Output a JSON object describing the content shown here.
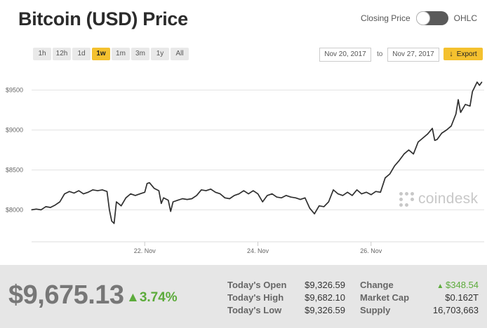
{
  "header": {
    "title": "Bitcoin (USD) Price"
  },
  "toggle": {
    "left_label": "Closing Price",
    "right_label": "OHLC"
  },
  "ranges": [
    {
      "label": "1h",
      "active": false
    },
    {
      "label": "12h",
      "active": false
    },
    {
      "label": "1d",
      "active": false
    },
    {
      "label": "1w",
      "active": true
    },
    {
      "label": "1m",
      "active": false
    },
    {
      "label": "3m",
      "active": false
    },
    {
      "label": "1y",
      "active": false
    },
    {
      "label": "All",
      "active": false
    }
  ],
  "date_range": {
    "from": "Nov 20, 2017",
    "to_label": "to",
    "to": "Nov 27, 2017",
    "export_label": "Export"
  },
  "watermark": "coindesk",
  "summary": {
    "price": "$9,675.13",
    "change_pct": "3.74%",
    "stats": [
      {
        "label": "Today's Open",
        "value": "$9,326.59"
      },
      {
        "label": "Today's High",
        "value": "$9,682.10"
      },
      {
        "label": "Today's Low",
        "value": "$9,326.59"
      }
    ],
    "stats2": [
      {
        "label": "Change",
        "value": "$348.54",
        "up": true
      },
      {
        "label": "Market Cap",
        "value": "$0.162T",
        "up": false
      },
      {
        "label": "Supply",
        "value": "16,703,663",
        "up": false
      }
    ]
  },
  "colors": {
    "accent": "#f4c12f",
    "line": "#2f2f2f",
    "positive": "#5cab3b",
    "footer_bg": "#e6e6e6"
  },
  "chart_data": {
    "type": "line",
    "title": "Bitcoin (USD) Price",
    "ylabel": "",
    "xlabel": "",
    "ylim": [
      7600,
      9750
    ],
    "yticks": [
      {
        "value": 8000,
        "label": "$8000"
      },
      {
        "value": 8500,
        "label": "$8500"
      },
      {
        "value": 9000,
        "label": "$9000"
      },
      {
        "value": 9500,
        "label": "$9500"
      }
    ],
    "xlim": [
      "2017-11-20",
      "2017-11-27"
    ],
    "xticks": [
      {
        "date": "2017-11-22",
        "label": "22. Nov"
      },
      {
        "date": "2017-11-24",
        "label": "24. Nov"
      },
      {
        "date": "2017-11-26",
        "label": "26. Nov"
      }
    ],
    "grid": true,
    "series": [
      {
        "name": "",
        "points": [
          [
            "2017-11-20 00:00",
            8000
          ],
          [
            "2017-11-20 02:00",
            8010
          ],
          [
            "2017-11-20 04:00",
            8000
          ],
          [
            "2017-11-20 06:00",
            8040
          ],
          [
            "2017-11-20 08:00",
            8030
          ],
          [
            "2017-11-20 10:00",
            8060
          ],
          [
            "2017-11-20 12:00",
            8100
          ],
          [
            "2017-11-20 14:00",
            8200
          ],
          [
            "2017-11-20 16:00",
            8230
          ],
          [
            "2017-11-20 18:00",
            8210
          ],
          [
            "2017-11-20 20:00",
            8240
          ],
          [
            "2017-11-20 22:00",
            8200
          ],
          [
            "2017-11-21 00:00",
            8220
          ],
          [
            "2017-11-21 02:00",
            8250
          ],
          [
            "2017-11-21 04:00",
            8240
          ],
          [
            "2017-11-21 06:00",
            8250
          ],
          [
            "2017-11-21 08:00",
            8230
          ],
          [
            "2017-11-21 09:00",
            8000
          ],
          [
            "2017-11-21 10:00",
            7860
          ],
          [
            "2017-11-21 11:00",
            7830
          ],
          [
            "2017-11-21 12:00",
            8100
          ],
          [
            "2017-11-21 14:00",
            8050
          ],
          [
            "2017-11-21 16:00",
            8150
          ],
          [
            "2017-11-21 18:00",
            8200
          ],
          [
            "2017-11-21 20:00",
            8180
          ],
          [
            "2017-11-21 22:00",
            8200
          ],
          [
            "2017-11-22 00:00",
            8220
          ],
          [
            "2017-11-22 01:00",
            8330
          ],
          [
            "2017-11-22 02:00",
            8340
          ],
          [
            "2017-11-22 04:00",
            8270
          ],
          [
            "2017-11-22 06:00",
            8240
          ],
          [
            "2017-11-22 07:00",
            8080
          ],
          [
            "2017-11-22 08:00",
            8150
          ],
          [
            "2017-11-22 10:00",
            8120
          ],
          [
            "2017-11-22 11:00",
            7980
          ],
          [
            "2017-11-22 12:00",
            8100
          ],
          [
            "2017-11-22 14:00",
            8120
          ],
          [
            "2017-11-22 16:00",
            8140
          ],
          [
            "2017-11-22 18:00",
            8130
          ],
          [
            "2017-11-22 20:00",
            8140
          ],
          [
            "2017-11-22 22:00",
            8180
          ],
          [
            "2017-11-23 00:00",
            8250
          ],
          [
            "2017-11-23 02:00",
            8240
          ],
          [
            "2017-11-23 04:00",
            8260
          ],
          [
            "2017-11-23 06:00",
            8220
          ],
          [
            "2017-11-23 08:00",
            8200
          ],
          [
            "2017-11-23 10:00",
            8150
          ],
          [
            "2017-11-23 12:00",
            8140
          ],
          [
            "2017-11-23 14:00",
            8180
          ],
          [
            "2017-11-23 16:00",
            8200
          ],
          [
            "2017-11-23 18:00",
            8240
          ],
          [
            "2017-11-23 20:00",
            8200
          ],
          [
            "2017-11-23 22:00",
            8240
          ],
          [
            "2017-11-24 00:00",
            8200
          ],
          [
            "2017-11-24 02:00",
            8100
          ],
          [
            "2017-11-24 04:00",
            8180
          ],
          [
            "2017-11-24 06:00",
            8200
          ],
          [
            "2017-11-24 08:00",
            8160
          ],
          [
            "2017-11-24 10:00",
            8150
          ],
          [
            "2017-11-24 12:00",
            8180
          ],
          [
            "2017-11-24 14:00",
            8160
          ],
          [
            "2017-11-24 16:00",
            8150
          ],
          [
            "2017-11-24 18:00",
            8130
          ],
          [
            "2017-11-24 20:00",
            8150
          ],
          [
            "2017-11-24 22:00",
            8020
          ],
          [
            "2017-11-25 00:00",
            7950
          ],
          [
            "2017-11-25 02:00",
            8050
          ],
          [
            "2017-11-25 04:00",
            8040
          ],
          [
            "2017-11-25 06:00",
            8100
          ],
          [
            "2017-11-25 08:00",
            8250
          ],
          [
            "2017-11-25 10:00",
            8200
          ],
          [
            "2017-11-25 12:00",
            8180
          ],
          [
            "2017-11-25 14:00",
            8220
          ],
          [
            "2017-11-25 16:00",
            8180
          ],
          [
            "2017-11-25 18:00",
            8250
          ],
          [
            "2017-11-25 20:00",
            8200
          ],
          [
            "2017-11-25 22:00",
            8220
          ],
          [
            "2017-11-26 00:00",
            8190
          ],
          [
            "2017-11-26 02:00",
            8230
          ],
          [
            "2017-11-26 04:00",
            8220
          ],
          [
            "2017-11-26 06:00",
            8400
          ],
          [
            "2017-11-26 08:00",
            8450
          ],
          [
            "2017-11-26 10:00",
            8550
          ],
          [
            "2017-11-26 12:00",
            8620
          ],
          [
            "2017-11-26 14:00",
            8700
          ],
          [
            "2017-11-26 16:00",
            8750
          ],
          [
            "2017-11-26 18:00",
            8700
          ],
          [
            "2017-11-26 20:00",
            8850
          ],
          [
            "2017-11-26 22:00",
            8900
          ],
          [
            "2017-11-27 00:00",
            8950
          ],
          [
            "2017-11-27 02:00",
            9020
          ],
          [
            "2017-11-27 03:00",
            8870
          ],
          [
            "2017-11-27 04:00",
            8880
          ],
          [
            "2017-11-27 06:00",
            8960
          ],
          [
            "2017-11-27 08:00",
            9000
          ],
          [
            "2017-11-27 10:00",
            9050
          ],
          [
            "2017-11-27 12:00",
            9200
          ],
          [
            "2017-11-27 13:00",
            9380
          ],
          [
            "2017-11-27 14:00",
            9220
          ],
          [
            "2017-11-27 16:00",
            9320
          ],
          [
            "2017-11-27 18:00",
            9300
          ],
          [
            "2017-11-27 19:00",
            9480
          ],
          [
            "2017-11-27 20:00",
            9540
          ],
          [
            "2017-11-27 21:00",
            9600
          ],
          [
            "2017-11-27 22:00",
            9560
          ],
          [
            "2017-11-27 23:00",
            9600
          ]
        ]
      }
    ]
  }
}
